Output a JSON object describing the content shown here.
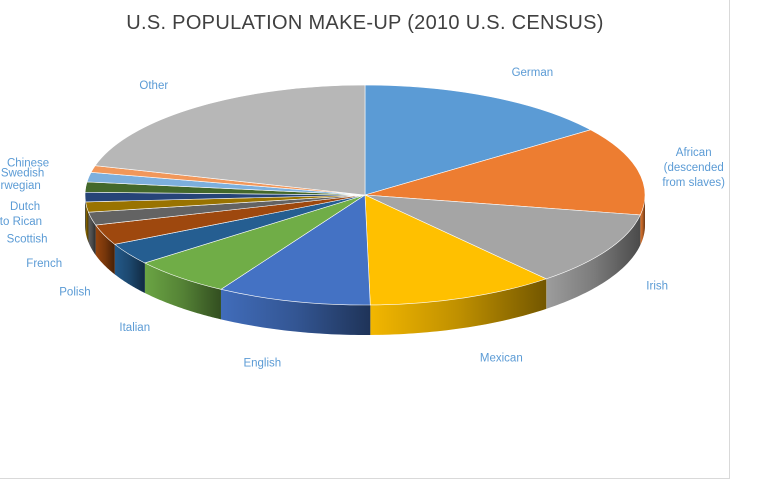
{
  "chart_data": {
    "type": "pie",
    "style": "3d-exploded-tilted",
    "title": "U.S. POPULATION MAKE-UP (2010 U.S. CENSUS)",
    "legend": "none (category labels outside slices)",
    "slices": [
      {
        "label": "German",
        "value": 14.9,
        "color": "#5b9bd5"
      },
      {
        "label": "African (descended from slaves)",
        "value": 13.0,
        "color": "#ed7d31"
      },
      {
        "label": "Irish",
        "value": 10.9,
        "color": "#a5a5a5"
      },
      {
        "label": "Mexican",
        "value": 10.9,
        "color": "#ffc000"
      },
      {
        "label": "English",
        "value": 8.9,
        "color": "#4472c4"
      },
      {
        "label": "Italian",
        "value": 5.8,
        "color": "#70ad47"
      },
      {
        "label": "Polish",
        "value": 3.2,
        "color": "#255e91"
      },
      {
        "label": "French",
        "value": 3.0,
        "color": "#9e480e"
      },
      {
        "label": "Scottish",
        "value": 1.9,
        "color": "#636363"
      },
      {
        "label": "Puerto Rican",
        "value": 1.5,
        "color": "#997300"
      },
      {
        "label": "Dutch",
        "value": 1.4,
        "color": "#264478"
      },
      {
        "label": "Norwegian",
        "value": 1.5,
        "color": "#43682b"
      },
      {
        "label": "Swedish",
        "value": 1.4,
        "color": "#7cafdd"
      },
      {
        "label": "Chinese",
        "value": 1.0,
        "color": "#f1975a"
      },
      {
        "label": "Other",
        "value": 20.7,
        "color": "#b7b7b7"
      }
    ]
  }
}
